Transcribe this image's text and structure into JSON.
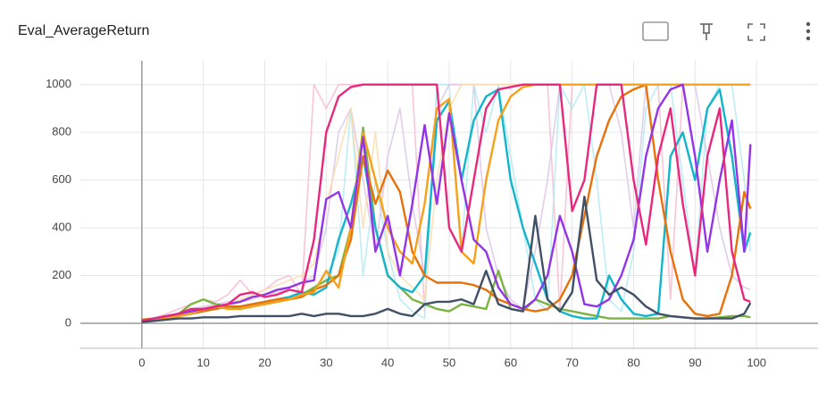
{
  "chart_data": {
    "type": "line",
    "title": "Eval_AverageReturn",
    "x": [
      0,
      2,
      4,
      6,
      8,
      10,
      12,
      14,
      16,
      18,
      20,
      22,
      24,
      26,
      28,
      30,
      32,
      34,
      36,
      38,
      40,
      42,
      44,
      46,
      48,
      50,
      52,
      54,
      56,
      58,
      60,
      62,
      64,
      66,
      68,
      70,
      72,
      74,
      76,
      78,
      80,
      82,
      84,
      86,
      88,
      90,
      92,
      94,
      96,
      98,
      99
    ],
    "xlim": [
      -10,
      110
    ],
    "xticks": [
      0,
      10,
      20,
      30,
      40,
      50,
      60,
      70,
      80,
      90,
      100
    ],
    "ylim": [
      -105,
      1100
    ],
    "yticks": [
      0,
      200,
      400,
      600,
      800,
      1000
    ],
    "grid": true,
    "series": [
      {
        "color": "#f8bbd0",
        "values": [
          10,
          20,
          40,
          60,
          80,
          100,
          90,
          120,
          180,
          120,
          140,
          180,
          200,
          120,
          1000,
          900,
          1000,
          1000,
          1000,
          1000,
          1000,
          1000,
          1000,
          50,
          1000,
          1000,
          1000,
          1000,
          1000,
          1000,
          1000,
          1000,
          1000,
          1000,
          50,
          1000,
          1000,
          1000,
          1000,
          1000,
          1000,
          1000,
          1000,
          100,
          1000,
          1000,
          1000,
          1000,
          1000,
          1000,
          1000
        ]
      },
      {
        "color": "#b2ebf2",
        "values": [
          10,
          20,
          30,
          40,
          50,
          60,
          70,
          60,
          70,
          80,
          90,
          100,
          100,
          120,
          150,
          200,
          300,
          900,
          200,
          600,
          300,
          100,
          50,
          20,
          1000,
          1000,
          300,
          1000,
          800,
          1000,
          700,
          400,
          100,
          50,
          1000,
          900,
          1000,
          600,
          100,
          50,
          300,
          900,
          1000,
          1000,
          600,
          200,
          900,
          1000,
          1000,
          600,
          300
        ]
      },
      {
        "color": "#dcc6e8",
        "values": [
          10,
          20,
          30,
          40,
          60,
          70,
          80,
          90,
          90,
          100,
          120,
          130,
          150,
          170,
          200,
          400,
          800,
          900,
          600,
          300,
          700,
          900,
          500,
          200,
          900,
          1000,
          1000,
          1000,
          400,
          200,
          100,
          60,
          300,
          600,
          1000,
          1000,
          1000,
          1000,
          1000,
          800,
          400,
          1000,
          1000,
          1000,
          1000,
          1000,
          700,
          400,
          200,
          150,
          140
        ]
      },
      {
        "color": "#fddcaa",
        "values": [
          10,
          20,
          30,
          40,
          50,
          60,
          70,
          80,
          100,
          120,
          140,
          160,
          180,
          200,
          250,
          500,
          700,
          900,
          400,
          800,
          300,
          200,
          150,
          100,
          600,
          900,
          1000,
          1000,
          1000,
          1000,
          1000,
          1000,
          1000,
          1000,
          1000,
          1000,
          1000,
          1000,
          1000,
          1000,
          1000,
          1000,
          1000,
          1000,
          1000,
          1000,
          1000,
          1000,
          1000,
          1000,
          1000
        ]
      },
      {
        "color": "#7cb342",
        "values": [
          10,
          20,
          30,
          40,
          80,
          100,
          80,
          70,
          60,
          70,
          80,
          90,
          100,
          120,
          150,
          180,
          200,
          400,
          820,
          400,
          200,
          150,
          100,
          80,
          60,
          50,
          80,
          70,
          60,
          220,
          60,
          50,
          100,
          80,
          60,
          50,
          40,
          30,
          20,
          20,
          20,
          20,
          20,
          30,
          25,
          20,
          20,
          25,
          30,
          30,
          25
        ]
      },
      {
        "color": "#12b5cb",
        "values": [
          10,
          20,
          30,
          40,
          50,
          60,
          60,
          70,
          70,
          80,
          90,
          100,
          110,
          130,
          120,
          150,
          350,
          500,
          700,
          400,
          200,
          150,
          130,
          200,
          850,
          930,
          600,
          850,
          950,
          980,
          600,
          400,
          250,
          100,
          50,
          30,
          20,
          20,
          200,
          100,
          40,
          30,
          40,
          700,
          800,
          600,
          900,
          980,
          700,
          300,
          380
        ]
      },
      {
        "color": "#e8710a",
        "values": [
          15,
          20,
          25,
          30,
          40,
          50,
          60,
          70,
          70,
          80,
          90,
          100,
          100,
          110,
          140,
          160,
          200,
          350,
          700,
          500,
          640,
          550,
          300,
          200,
          170,
          170,
          170,
          160,
          140,
          100,
          80,
          60,
          50,
          60,
          100,
          200,
          450,
          700,
          850,
          950,
          980,
          1000,
          600,
          300,
          100,
          40,
          30,
          40,
          200,
          550,
          480
        ]
      },
      {
        "color": "#f5a11a",
        "values": [
          10,
          15,
          20,
          30,
          40,
          60,
          70,
          60,
          60,
          70,
          80,
          90,
          100,
          120,
          130,
          220,
          150,
          400,
          800,
          600,
          400,
          300,
          250,
          500,
          900,
          940,
          300,
          250,
          600,
          850,
          950,
          990,
          1000,
          1000,
          1000,
          1000,
          1000,
          1000,
          1000,
          1000,
          1000,
          1000,
          1000,
          1000,
          1000,
          1000,
          1000,
          1000,
          1000,
          1000,
          1000
        ]
      },
      {
        "color": "#9334e6",
        "values": [
          10,
          20,
          30,
          40,
          50,
          60,
          70,
          80,
          90,
          110,
          120,
          140,
          150,
          170,
          180,
          520,
          550,
          400,
          780,
          300,
          450,
          200,
          500,
          830,
          500,
          880,
          600,
          350,
          300,
          150,
          80,
          60,
          100,
          200,
          450,
          300,
          80,
          70,
          100,
          200,
          350,
          700,
          900,
          980,
          1000,
          700,
          300,
          600,
          850,
          300,
          750
        ]
      },
      {
        "color": "#e8287d",
        "values": [
          10,
          20,
          30,
          40,
          60,
          60,
          70,
          80,
          120,
          130,
          110,
          120,
          140,
          130,
          350,
          800,
          950,
          990,
          1000,
          1000,
          1000,
          1000,
          1000,
          1000,
          1000,
          400,
          300,
          600,
          900,
          980,
          990,
          1000,
          1000,
          1000,
          1000,
          470,
          600,
          1000,
          1000,
          1000,
          600,
          330,
          700,
          900,
          500,
          200,
          700,
          900,
          300,
          100,
          90
        ]
      },
      {
        "color": "#425066",
        "values": [
          5,
          10,
          15,
          20,
          20,
          25,
          25,
          25,
          30,
          30,
          30,
          30,
          30,
          40,
          30,
          40,
          40,
          30,
          30,
          40,
          60,
          40,
          30,
          80,
          90,
          90,
          100,
          80,
          220,
          80,
          60,
          50,
          450,
          100,
          50,
          130,
          530,
          180,
          120,
          150,
          120,
          70,
          40,
          30,
          25,
          20,
          20,
          20,
          20,
          40,
          85
        ]
      }
    ]
  }
}
